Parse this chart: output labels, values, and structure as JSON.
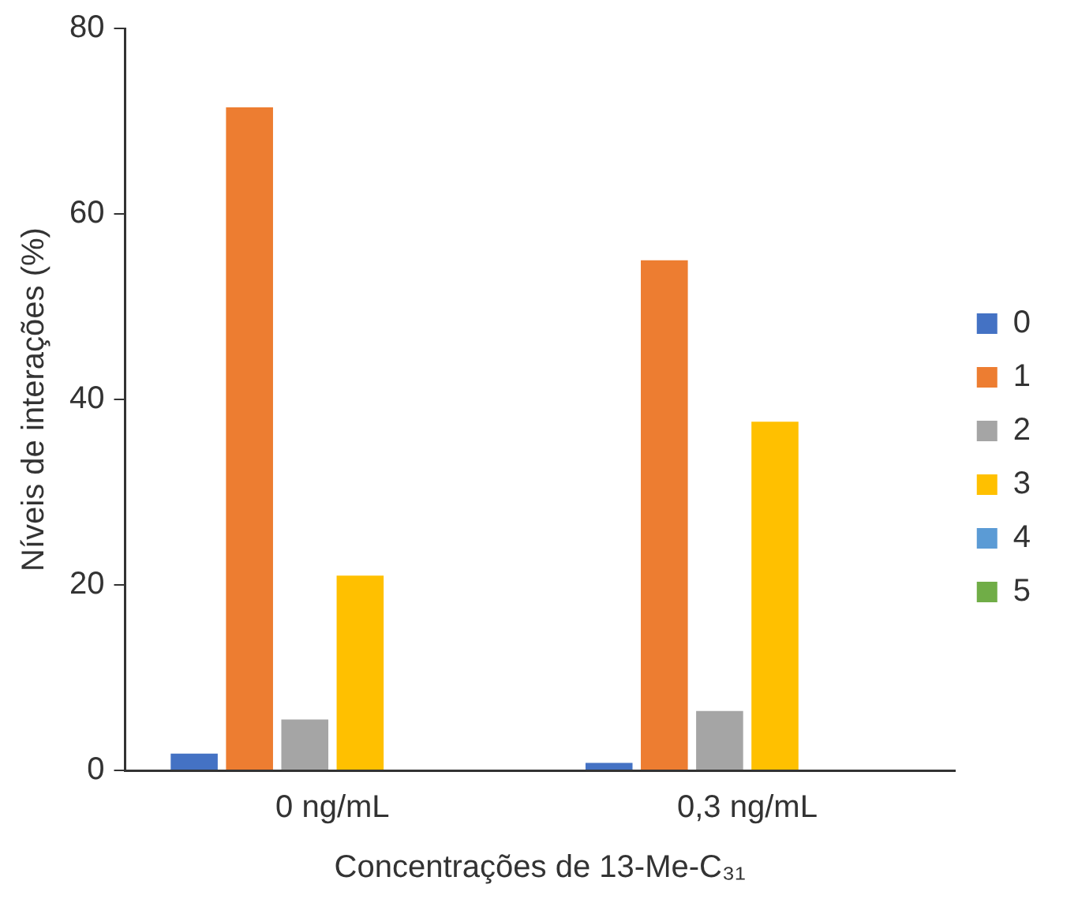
{
  "chart_data": {
    "type": "bar",
    "xlabel": "Concentrações de 13-Me-C₃₁",
    "ylabel": "Níveis de interações (%)",
    "categories": [
      "0 ng/mL",
      "0,3 ng/mL"
    ],
    "series": [
      {
        "name": "0",
        "color": "#4472c4",
        "values": [
          1.8,
          0.8
        ]
      },
      {
        "name": "1",
        "color": "#ed7d31",
        "values": [
          71.5,
          55
        ]
      },
      {
        "name": "2",
        "color": "#a5a5a5",
        "values": [
          5.5,
          6.4
        ]
      },
      {
        "name": "3",
        "color": "#ffc000",
        "values": [
          21,
          37.6
        ]
      },
      {
        "name": "4",
        "color": "#5b9bd5",
        "values": [
          0,
          0
        ]
      },
      {
        "name": "5",
        "color": "#70ad47",
        "values": [
          0,
          0
        ]
      }
    ],
    "ylim": [
      0,
      80
    ],
    "yticks": [
      0,
      20,
      40,
      60,
      80
    ],
    "grid": false,
    "legend": "right"
  }
}
